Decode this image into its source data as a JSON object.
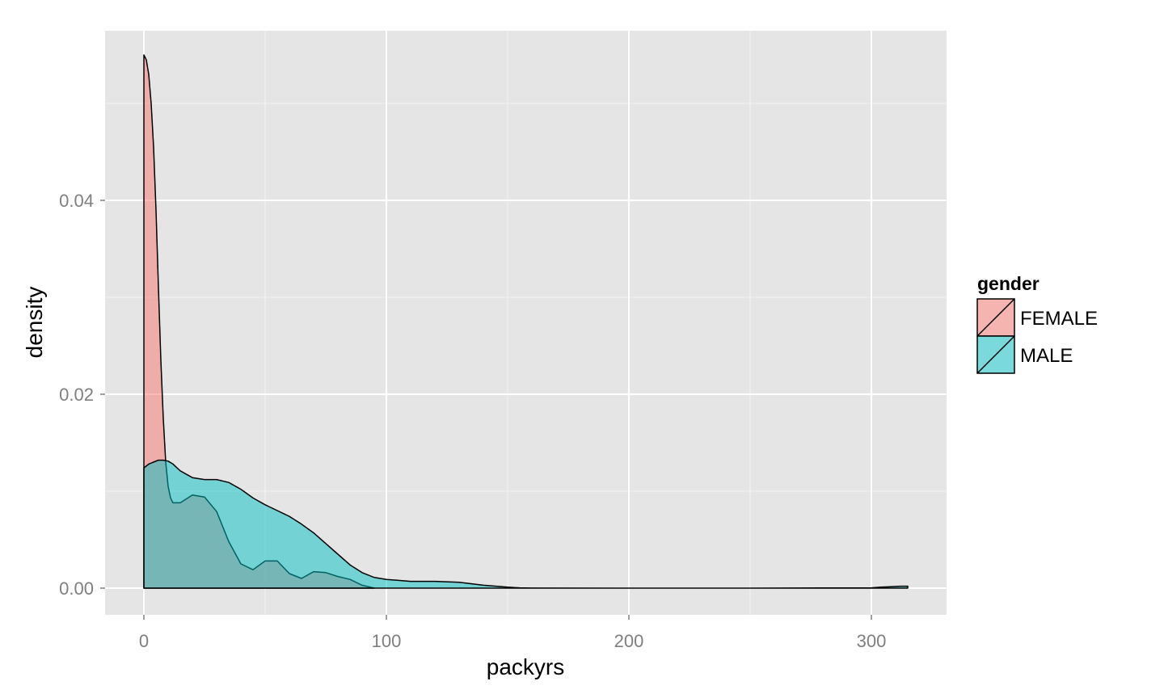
{
  "chart_data": {
    "type": "area",
    "xlabel": "packyrs",
    "ylabel": "density",
    "xlim": [
      -16,
      331
    ],
    "ylim": [
      -0.00275,
      0.0575
    ],
    "x_ticks": [
      0,
      100,
      200,
      300
    ],
    "x_tick_labels": [
      "0",
      "100",
      "200",
      "300"
    ],
    "x_minor": [
      50,
      150,
      250
    ],
    "y_ticks": [
      0.0,
      0.02,
      0.04
    ],
    "y_tick_labels": [
      "0.00",
      "0.02",
      "0.04"
    ],
    "y_minor": [
      0.01,
      0.03,
      0.05
    ],
    "grid": true,
    "legend": {
      "title": "gender",
      "position": "right",
      "entries": [
        "FEMALE",
        "MALE"
      ]
    },
    "series": [
      {
        "name": "FEMALE",
        "color": "#F8766D",
        "x": [
          0,
          1,
          2,
          3,
          4,
          5,
          6,
          7,
          8,
          9,
          10,
          11,
          12,
          15,
          20,
          25,
          30,
          35,
          40,
          45,
          50,
          55,
          60,
          65,
          70,
          75,
          80,
          85,
          90,
          95
        ],
        "y": [
          0.055,
          0.0545,
          0.053,
          0.05,
          0.0455,
          0.039,
          0.031,
          0.0235,
          0.0175,
          0.013,
          0.0105,
          0.0093,
          0.0088,
          0.0088,
          0.0096,
          0.0094,
          0.0079,
          0.0048,
          0.0025,
          0.0019,
          0.0028,
          0.0028,
          0.0015,
          0.001,
          0.0017,
          0.0016,
          0.0012,
          0.0009,
          0.0003,
          0.0
        ]
      },
      {
        "name": "MALE",
        "color": "#00BFC4",
        "x": [
          0,
          2,
          4,
          6,
          8,
          10,
          12,
          15,
          20,
          25,
          30,
          35,
          40,
          45,
          50,
          55,
          60,
          65,
          70,
          75,
          80,
          85,
          90,
          95,
          100,
          105,
          110,
          120,
          130,
          140,
          150,
          155,
          160,
          200,
          250,
          300,
          304,
          308,
          312,
          315
        ],
        "y": [
          0.0124,
          0.0128,
          0.013,
          0.0132,
          0.0132,
          0.0131,
          0.0128,
          0.0121,
          0.0114,
          0.0112,
          0.0112,
          0.0109,
          0.0102,
          0.0093,
          0.0086,
          0.008,
          0.0074,
          0.0066,
          0.0057,
          0.0046,
          0.0035,
          0.0024,
          0.0016,
          0.0011,
          0.0009,
          0.0008,
          0.0007,
          0.0007,
          0.0006,
          0.0003,
          0.0001,
          3e-05,
          1e-05,
          0.0,
          0.0,
          3e-05,
          0.0001,
          0.00015,
          0.0002,
          0.0002
        ]
      }
    ]
  }
}
